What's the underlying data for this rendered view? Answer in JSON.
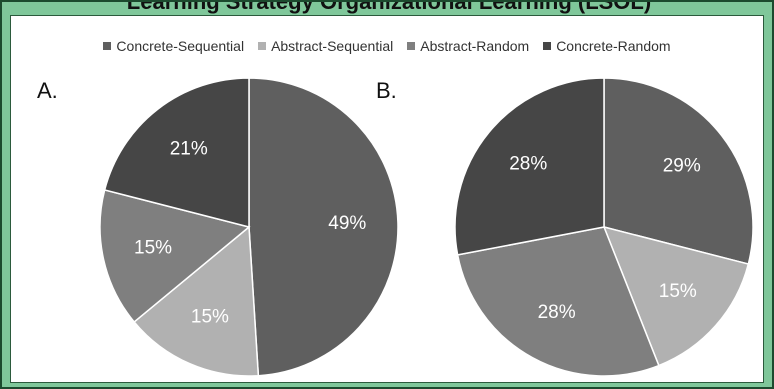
{
  "title": "Learning Strategy Organizational Learning (LSOL)",
  "colors": {
    "Concrete-Sequential": "#5f5f5f",
    "Abstract-Sequential": "#b1b1b1",
    "Abstract-Random": "#7f7f7f",
    "Concrete-Random": "#464646",
    "frame": "#7fc79a"
  },
  "legend": [
    {
      "label": "Concrete-Sequential",
      "color": "#5f5f5f"
    },
    {
      "label": "Abstract-Sequential",
      "color": "#b1b1b1"
    },
    {
      "label": "Abstract-Random",
      "color": "#7f7f7f"
    },
    {
      "label": "Concrete-Random",
      "color": "#464646"
    }
  ],
  "chart_data": [
    {
      "type": "pie",
      "panel": "A.",
      "categories": [
        "Concrete-Sequential",
        "Abstract-Sequential",
        "Abstract-Random",
        "Concrete-Random"
      ],
      "values": [
        49,
        15,
        15,
        21
      ],
      "labels": [
        "49%",
        "15%",
        "15%",
        "21%"
      ]
    },
    {
      "type": "pie",
      "panel": "B.",
      "categories": [
        "Concrete-Sequential",
        "Abstract-Sequential",
        "Abstract-Random",
        "Concrete-Random"
      ],
      "values": [
        29,
        15,
        28,
        28
      ],
      "labels": [
        "29%",
        "15%",
        "28%",
        "28%"
      ]
    }
  ]
}
